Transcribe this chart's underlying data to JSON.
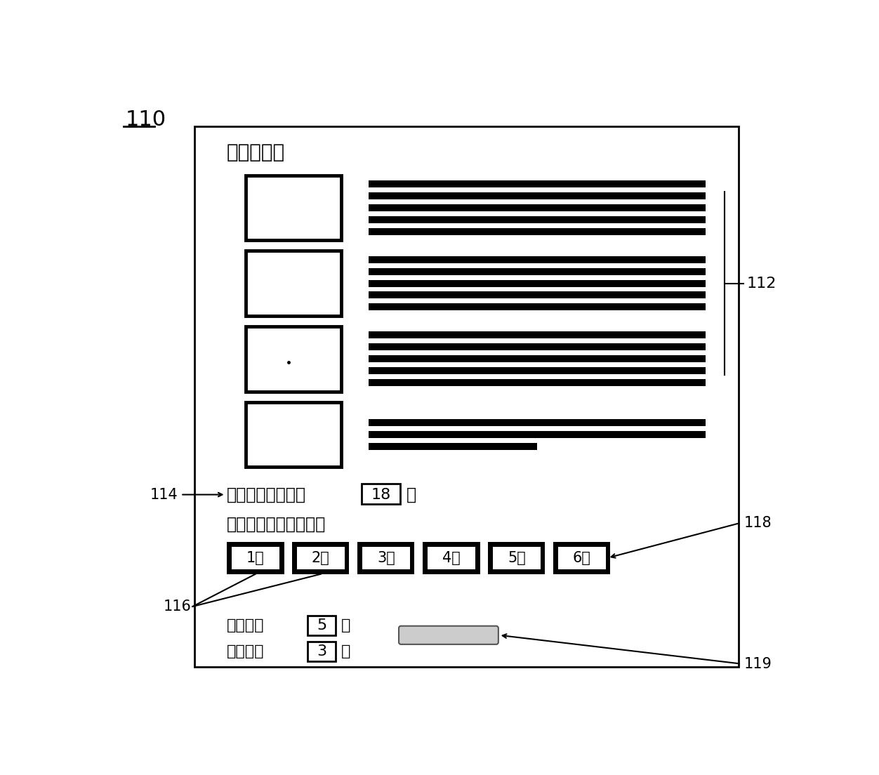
{
  "title_label": "110",
  "panel_label": "112",
  "label_114": "114",
  "label_116": "116",
  "label_118": "118",
  "label_119": "119",
  "usage_title": "使用说明：",
  "available_unit_text": "当前可用展示单元",
  "available_unit_value": "18",
  "available_unit_suffix": "个",
  "select_duration_text": "请选择租用时间长度：",
  "day_buttons": [
    "1天",
    "2天",
    "3天",
    "4天",
    "5天",
    "6天"
  ],
  "coins_needed_label": "需投币数",
  "coins_needed_value": "5",
  "coins_needed_suffix": "元",
  "coins_inserted_label": "已投币数",
  "coins_inserted_value": "3",
  "coins_inserted_suffix": "元",
  "bg_color": "#ffffff"
}
